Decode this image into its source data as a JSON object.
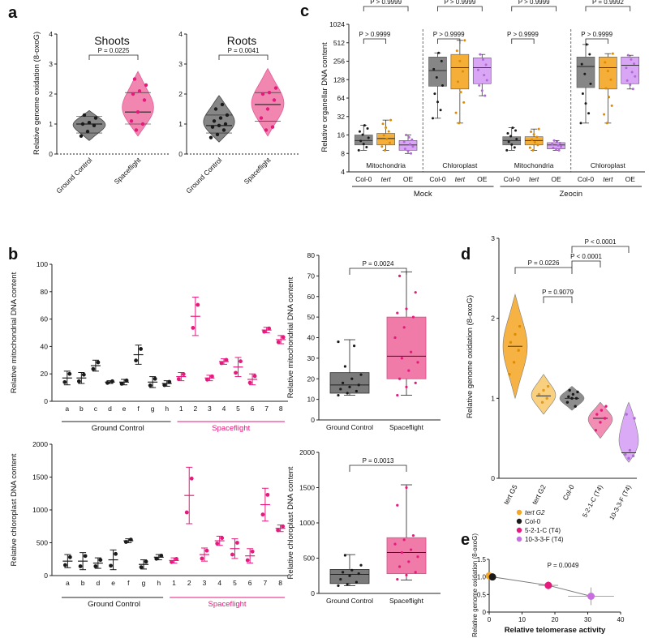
{
  "colors": {
    "ground": "#7a7a7a",
    "ground_dark": "#1a1a1a",
    "flight": "#f07aa8",
    "flight_dark": "#e6197d",
    "tert": "#f5a623",
    "oe": "#d59cf5",
    "col0": "#1a1a1a",
    "line5": "#e6197d",
    "line10": "#c86fe0"
  },
  "panels": {
    "a": {
      "label": "a",
      "ylabel": "Relative genome oxidation (8-oxoG)",
      "categories": [
        "Ground Control",
        "Spaceflight"
      ],
      "shoots_title": "Shoots",
      "roots_title": "Roots",
      "p_shoots": "P = 0.0225",
      "p_roots": "P = 0.0041"
    },
    "b": {
      "label": "b",
      "ylabel_mito": "Relative mitochondrial DNA content",
      "ylabel_chloro": "Relative chloroplast DNA content",
      "group_ground": "Ground Control",
      "group_flight": "Spaceflight",
      "box_categories": [
        "Ground Control",
        "Spaceflight"
      ],
      "p_mito": "P = 0.0024",
      "p_chloro": "P = 0.0013"
    },
    "c": {
      "label": "c",
      "ylabel": "Relative organellar DNA content",
      "categories": [
        "Col-0",
        "tert",
        "OE"
      ],
      "compartments": [
        "Mitochondria",
        "Chloroplast"
      ],
      "treatments": [
        "Mock",
        "Zeocin"
      ],
      "p_labels": [
        "P > 0.9999",
        "P > 0.9999",
        "P > 0.9999",
        "P > 0.9999",
        "P > 0.9999",
        "P > 0.9999",
        "P > 0.9999",
        "P = 0.9992"
      ]
    },
    "d": {
      "label": "d",
      "ylabel": "Relative genome oxidation (8-oxoG)",
      "categories": [
        "tert G5",
        "tert G2",
        "Col-0",
        "5-2-1-C (T4)",
        "10-3-3-F (T4)"
      ],
      "p_labels": [
        "P = 0.0226",
        "P = 0.9079",
        "P < 0.0001",
        "P < 0.0001"
      ]
    },
    "e": {
      "label": "e",
      "xlabel": "Relative telomerase activity",
      "ylabel": "Relative genome oxidation (8-oxoG)",
      "legend": [
        {
          "name": "tert G2",
          "color": "#f5a623"
        },
        {
          "name": "Col-0",
          "color": "#1a1a1a"
        },
        {
          "name": "5-2-1-C (T4)",
          "color": "#e6197d"
        },
        {
          "name": "10-3-3-F (T4)",
          "color": "#c86fe0"
        }
      ],
      "p_label": "P = 0.0049"
    }
  },
  "chart_data": [
    {
      "panel": "a-shoots",
      "type": "violin",
      "title": "Shoots",
      "ylabel": "Relative genome oxidation (8-oxoG)",
      "ylim": [
        0,
        4
      ],
      "yticks": [
        0,
        1,
        2,
        3,
        4
      ],
      "categories": [
        "Ground Control",
        "Spaceflight"
      ],
      "series": [
        {
          "name": "Ground Control",
          "points": [
            0.6,
            0.75,
            0.95,
            1.0,
            1.05,
            1.2,
            1.3
          ],
          "median": 1.0,
          "q1": 0.7,
          "q3": 1.25,
          "min": 0.45,
          "max": 1.45
        },
        {
          "name": "Spaceflight",
          "points": [
            0.8,
            1.0,
            1.1,
            1.4,
            1.8,
            2.0,
            2.1,
            2.3,
            2.5
          ],
          "median": 1.4,
          "q1": 1.0,
          "q3": 2.05,
          "min": 0.6,
          "max": 2.75
        }
      ]
    },
    {
      "panel": "a-roots",
      "type": "violin",
      "title": "Roots",
      "ylabel": "Relative genome oxidation (8-oxoG)",
      "ylim": [
        0,
        4
      ],
      "yticks": [
        0,
        1,
        2,
        3,
        4
      ],
      "categories": [
        "Ground Control",
        "Spaceflight"
      ],
      "series": [
        {
          "name": "Ground Control",
          "points": [
            0.55,
            0.65,
            0.8,
            0.9,
            0.95,
            1.0,
            1.1,
            1.2,
            1.3,
            1.5,
            1.65
          ],
          "median": 0.95,
          "q1": 0.7,
          "q3": 1.3,
          "min": 0.4,
          "max": 1.95
        },
        {
          "name": "Spaceflight",
          "points": [
            0.8,
            0.9,
            1.2,
            1.5,
            1.8,
            2.0,
            2.05,
            2.2
          ],
          "median": 1.65,
          "q1": 1.1,
          "q3": 2.05,
          "min": 0.6,
          "max": 2.85
        }
      ]
    },
    {
      "panel": "b-mito-lines",
      "type": "scatter",
      "ylabel": "Relative mitochondrial DNA content",
      "ylim": [
        0,
        100
      ],
      "yticks": [
        0,
        20,
        40,
        60,
        80,
        100
      ],
      "categories": [
        "a",
        "b",
        "c",
        "d",
        "e",
        "f",
        "g",
        "h",
        "1",
        "2",
        "3",
        "4",
        "5",
        "6",
        "7",
        "8"
      ],
      "mean": [
        17,
        17,
        26,
        14,
        14,
        34,
        14,
        13,
        18,
        62,
        17,
        29,
        25,
        16,
        52,
        45
      ],
      "err": [
        5,
        4,
        4,
        1,
        2,
        7,
        4,
        2,
        3,
        14,
        2,
        2,
        7,
        4,
        2,
        3
      ],
      "group": [
        "ground",
        "ground",
        "ground",
        "ground",
        "ground",
        "ground",
        "ground",
        "ground",
        "flight",
        "flight",
        "flight",
        "flight",
        "flight",
        "flight",
        "flight",
        "flight"
      ]
    },
    {
      "panel": "b-mito-box",
      "type": "box",
      "ylabel": "Relative mitochondrial DNA content",
      "ylim": [
        0,
        80
      ],
      "yticks": [
        0,
        10,
        20,
        30,
        40,
        50,
        60,
        70,
        80
      ],
      "categories": [
        "Ground Control",
        "Spaceflight"
      ],
      "series": [
        {
          "name": "Ground Control",
          "min": 12,
          "q1": 13,
          "median": 17,
          "q3": 23,
          "max": 39,
          "points": [
            12,
            13,
            14,
            15,
            16,
            17,
            18,
            20,
            22,
            26,
            36,
            38
          ]
        },
        {
          "name": "Spaceflight",
          "min": 12,
          "q1": 20,
          "median": 31,
          "q3": 50,
          "max": 72,
          "points": [
            12,
            16,
            18,
            20,
            24,
            28,
            30,
            33,
            40,
            45,
            50,
            52,
            54,
            62,
            70
          ]
        }
      ]
    },
    {
      "panel": "b-chloro-lines",
      "type": "scatter",
      "ylabel": "Relative chloroplast DNA content",
      "ylim": [
        0,
        2000
      ],
      "yticks": [
        0,
        500,
        1000,
        1500,
        2000
      ],
      "categories": [
        "a",
        "b",
        "d",
        "e",
        "f",
        "g",
        "h",
        "1",
        "2",
        "3",
        "4",
        "5",
        "6",
        "7",
        "8"
      ],
      "mean": [
        220,
        220,
        190,
        240,
        530,
        170,
        280,
        230,
        1220,
        320,
        530,
        410,
        300,
        1080,
        720
      ],
      "err": [
        100,
        130,
        80,
        150,
        30,
        70,
        40,
        40,
        430,
        100,
        70,
        150,
        110,
        250,
        50
      ],
      "group": [
        "ground",
        "ground",
        "ground",
        "ground",
        "ground",
        "ground",
        "ground",
        "flight",
        "flight",
        "flight",
        "flight",
        "flight",
        "flight",
        "flight",
        "flight"
      ]
    },
    {
      "panel": "b-chloro-box",
      "type": "box",
      "ylabel": "Relative chloroplast DNA content",
      "ylim": [
        0,
        2000
      ],
      "yticks": [
        0,
        500,
        1000,
        1500,
        2000
      ],
      "categories": [
        "Ground Control",
        "Spaceflight"
      ],
      "series": [
        {
          "name": "Ground Control",
          "min": 110,
          "q1": 140,
          "median": 270,
          "q3": 340,
          "max": 550,
          "points": [
            110,
            130,
            160,
            200,
            250,
            280,
            300,
            330,
            400,
            540
          ]
        },
        {
          "name": "Spaceflight",
          "min": 190,
          "q1": 280,
          "median": 580,
          "q3": 790,
          "max": 1540,
          "points": [
            200,
            260,
            300,
            380,
            450,
            520,
            580,
            620,
            700,
            760,
            820,
            1250,
            1500
          ]
        }
      ]
    },
    {
      "panel": "c",
      "type": "box",
      "ylabel": "Relative organellar DNA content",
      "yscale": "log2",
      "ylim": [
        4,
        1024
      ],
      "yticks": [
        4,
        8,
        16,
        32,
        64,
        128,
        256,
        512,
        1024
      ],
      "groups": [
        {
          "treatment": "Mock",
          "compartment": "Mitochondria",
          "boxes": [
            {
              "name": "Col-0",
              "color": "ground",
              "min": 9,
              "q1": 11,
              "median": 13,
              "q3": 16,
              "max": 23
            },
            {
              "name": "tert",
              "color": "tert",
              "min": 9,
              "q1": 11,
              "median": 14,
              "q3": 17,
              "max": 28
            },
            {
              "name": "OE",
              "color": "oe",
              "min": 8,
              "q1": 9,
              "median": 11,
              "q3": 13,
              "max": 16
            }
          ]
        },
        {
          "treatment": "Mock",
          "compartment": "Chloroplast",
          "boxes": [
            {
              "name": "Col-0",
              "color": "ground",
              "min": 30,
              "q1": 100,
              "median": 180,
              "q3": 300,
              "max": 350
            },
            {
              "name": "tert",
              "color": "tert",
              "min": 25,
              "q1": 90,
              "median": 200,
              "q3": 330,
              "max": 560
            },
            {
              "name": "OE",
              "color": "oe",
              "min": 70,
              "q1": 110,
              "median": 200,
              "q3": 290,
              "max": 330
            }
          ]
        },
        {
          "treatment": "Zeocin",
          "compartment": "Mitochondria",
          "boxes": [
            {
              "name": "Col-0",
              "color": "ground",
              "min": 9,
              "q1": 11,
              "median": 13,
              "q3": 15,
              "max": 21
            },
            {
              "name": "tert",
              "color": "tert",
              "min": 9,
              "q1": 11,
              "median": 13,
              "q3": 15,
              "max": 20
            },
            {
              "name": "OE",
              "color": "oe",
              "min": 9,
              "q1": 9.5,
              "median": 11,
              "q3": 12,
              "max": 13
            }
          ]
        },
        {
          "treatment": "Zeocin",
          "compartment": "Chloroplast",
          "boxes": [
            {
              "name": "Col-0",
              "color": "ground",
              "min": 25,
              "q1": 95,
              "median": 210,
              "q3": 300,
              "max": 480
            },
            {
              "name": "tert",
              "color": "tert",
              "min": 25,
              "q1": 90,
              "median": 200,
              "q3": 300,
              "max": 340
            },
            {
              "name": "OE",
              "color": "oe",
              "min": 90,
              "q1": 110,
              "median": 220,
              "q3": 300,
              "max": 320
            }
          ]
        }
      ]
    },
    {
      "panel": "d",
      "type": "violin",
      "ylabel": "Relative genome oxidation (8-oxoG)",
      "ylim": [
        0,
        3
      ],
      "yticks": [
        0,
        1,
        2,
        3
      ],
      "categories": [
        "tert G5",
        "tert G2",
        "Col-0",
        "5-2-1-C (T4)",
        "10-3-3-F (T4)"
      ],
      "series": [
        {
          "name": "tert G5",
          "points": [
            1.3,
            1.45,
            1.6,
            1.7,
            1.8,
            1.9
          ],
          "median": 1.65,
          "min": 1.0,
          "max": 2.3
        },
        {
          "name": "tert G2",
          "points": [
            0.95,
            1.0,
            1.05,
            1.1,
            1.15
          ],
          "median": 1.03,
          "min": 0.8,
          "max": 1.3
        },
        {
          "name": "Col-0",
          "points": [
            0.9,
            0.95,
            1.0,
            1.0,
            1.02,
            1.05,
            1.08,
            1.1
          ],
          "median": 1.0,
          "min": 0.85,
          "max": 1.15
        },
        {
          "name": "5-2-1-C (T4)",
          "points": [
            0.6,
            0.7,
            0.75,
            0.8,
            0.85,
            0.9
          ],
          "median": 0.75,
          "min": 0.5,
          "max": 0.95
        },
        {
          "name": "10-3-3-F (T4)",
          "points": [
            0.25,
            0.28,
            0.3,
            0.35,
            0.75,
            0.8
          ],
          "median": 0.32,
          "min": 0.2,
          "max": 0.95
        }
      ]
    },
    {
      "panel": "e",
      "type": "line",
      "xlabel": "Relative telomerase activity",
      "ylabel": "Relative genome oxidation (8-oxoG)",
      "xlim": [
        0,
        40
      ],
      "ylim": [
        0,
        1.5
      ],
      "xticks": [
        0,
        10,
        20,
        30,
        40
      ],
      "yticks": [
        0,
        0.5,
        1.0,
        1.5
      ],
      "series": [
        {
          "name": "tert G2",
          "x": 0,
          "y": 1.03,
          "xerr": 0.5,
          "yerr": 0.08
        },
        {
          "name": "Col-0",
          "x": 1,
          "y": 1.0,
          "xerr": 0.5,
          "yerr": 0.05
        },
        {
          "name": "5-2-1-C (T4)",
          "x": 18,
          "y": 0.76,
          "xerr": 3,
          "yerr": 0.12
        },
        {
          "name": "10-3-3-F (T4)",
          "x": 31,
          "y": 0.45,
          "xerr": 7,
          "yerr": 0.25
        }
      ]
    }
  ]
}
